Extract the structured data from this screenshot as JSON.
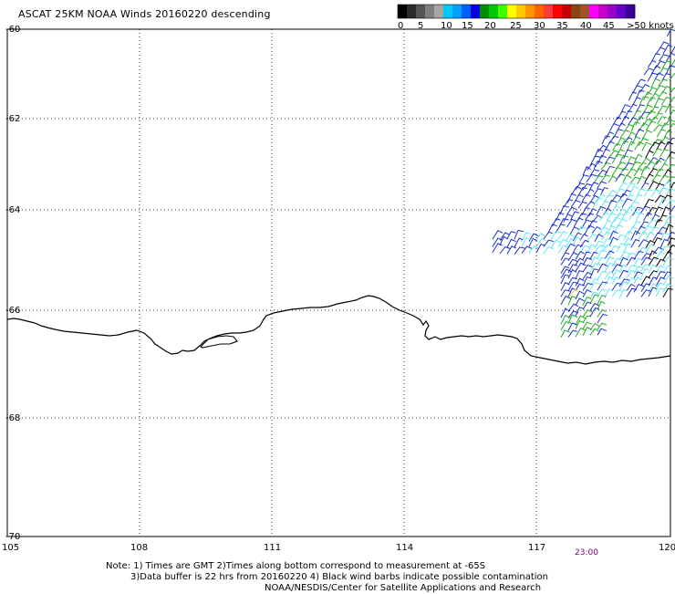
{
  "title": "ASCAT 25KM NOAA Winds 20160220 descending",
  "legend": {
    "unit": "knots",
    "labels": [
      "0",
      "5",
      "10",
      "15",
      "20",
      "25",
      "30",
      "35",
      "40",
      "45",
      ">50 knots"
    ],
    "colors": [
      "#000000",
      "#2b2b2b",
      "#555555",
      "#808080",
      "#a6a6a6",
      "#00c8ff",
      "#00a0ff",
      "#0060ff",
      "#0000e0",
      "#008c00",
      "#00c800",
      "#40ff00",
      "#ffff00",
      "#ffc800",
      "#ff9600",
      "#ff6400",
      "#ff3c3c",
      "#ff0000",
      "#c80000",
      "#8b4513",
      "#a0522d",
      "#ff00ff",
      "#c800c8",
      "#9600c8",
      "#6400c8",
      "#3c0096"
    ]
  },
  "lat_labels": [
    "-60",
    "-62",
    "-64",
    "-66",
    "-68",
    "-70"
  ],
  "lon_labels": [
    "105",
    "108",
    "111",
    "114",
    "117",
    "120"
  ],
  "time_label": "23:00",
  "notes": {
    "line1": "Note: 1) Times are GMT 2)Times along bottom correspond to measurement at -65S",
    "line2": "3)Data buffer is 22 hrs from 20160220 4) Black wind barbs indicate possible contamination",
    "line3": "NOAA/NESDIS/Center for Satellite Applications and Research"
  },
  "swath_colors": {
    "calm": "#5fe6f5",
    "light": "#1a2ecc",
    "moderate": "#22aa22",
    "contaminated": "#000000",
    "strong": "#f0e020"
  }
}
